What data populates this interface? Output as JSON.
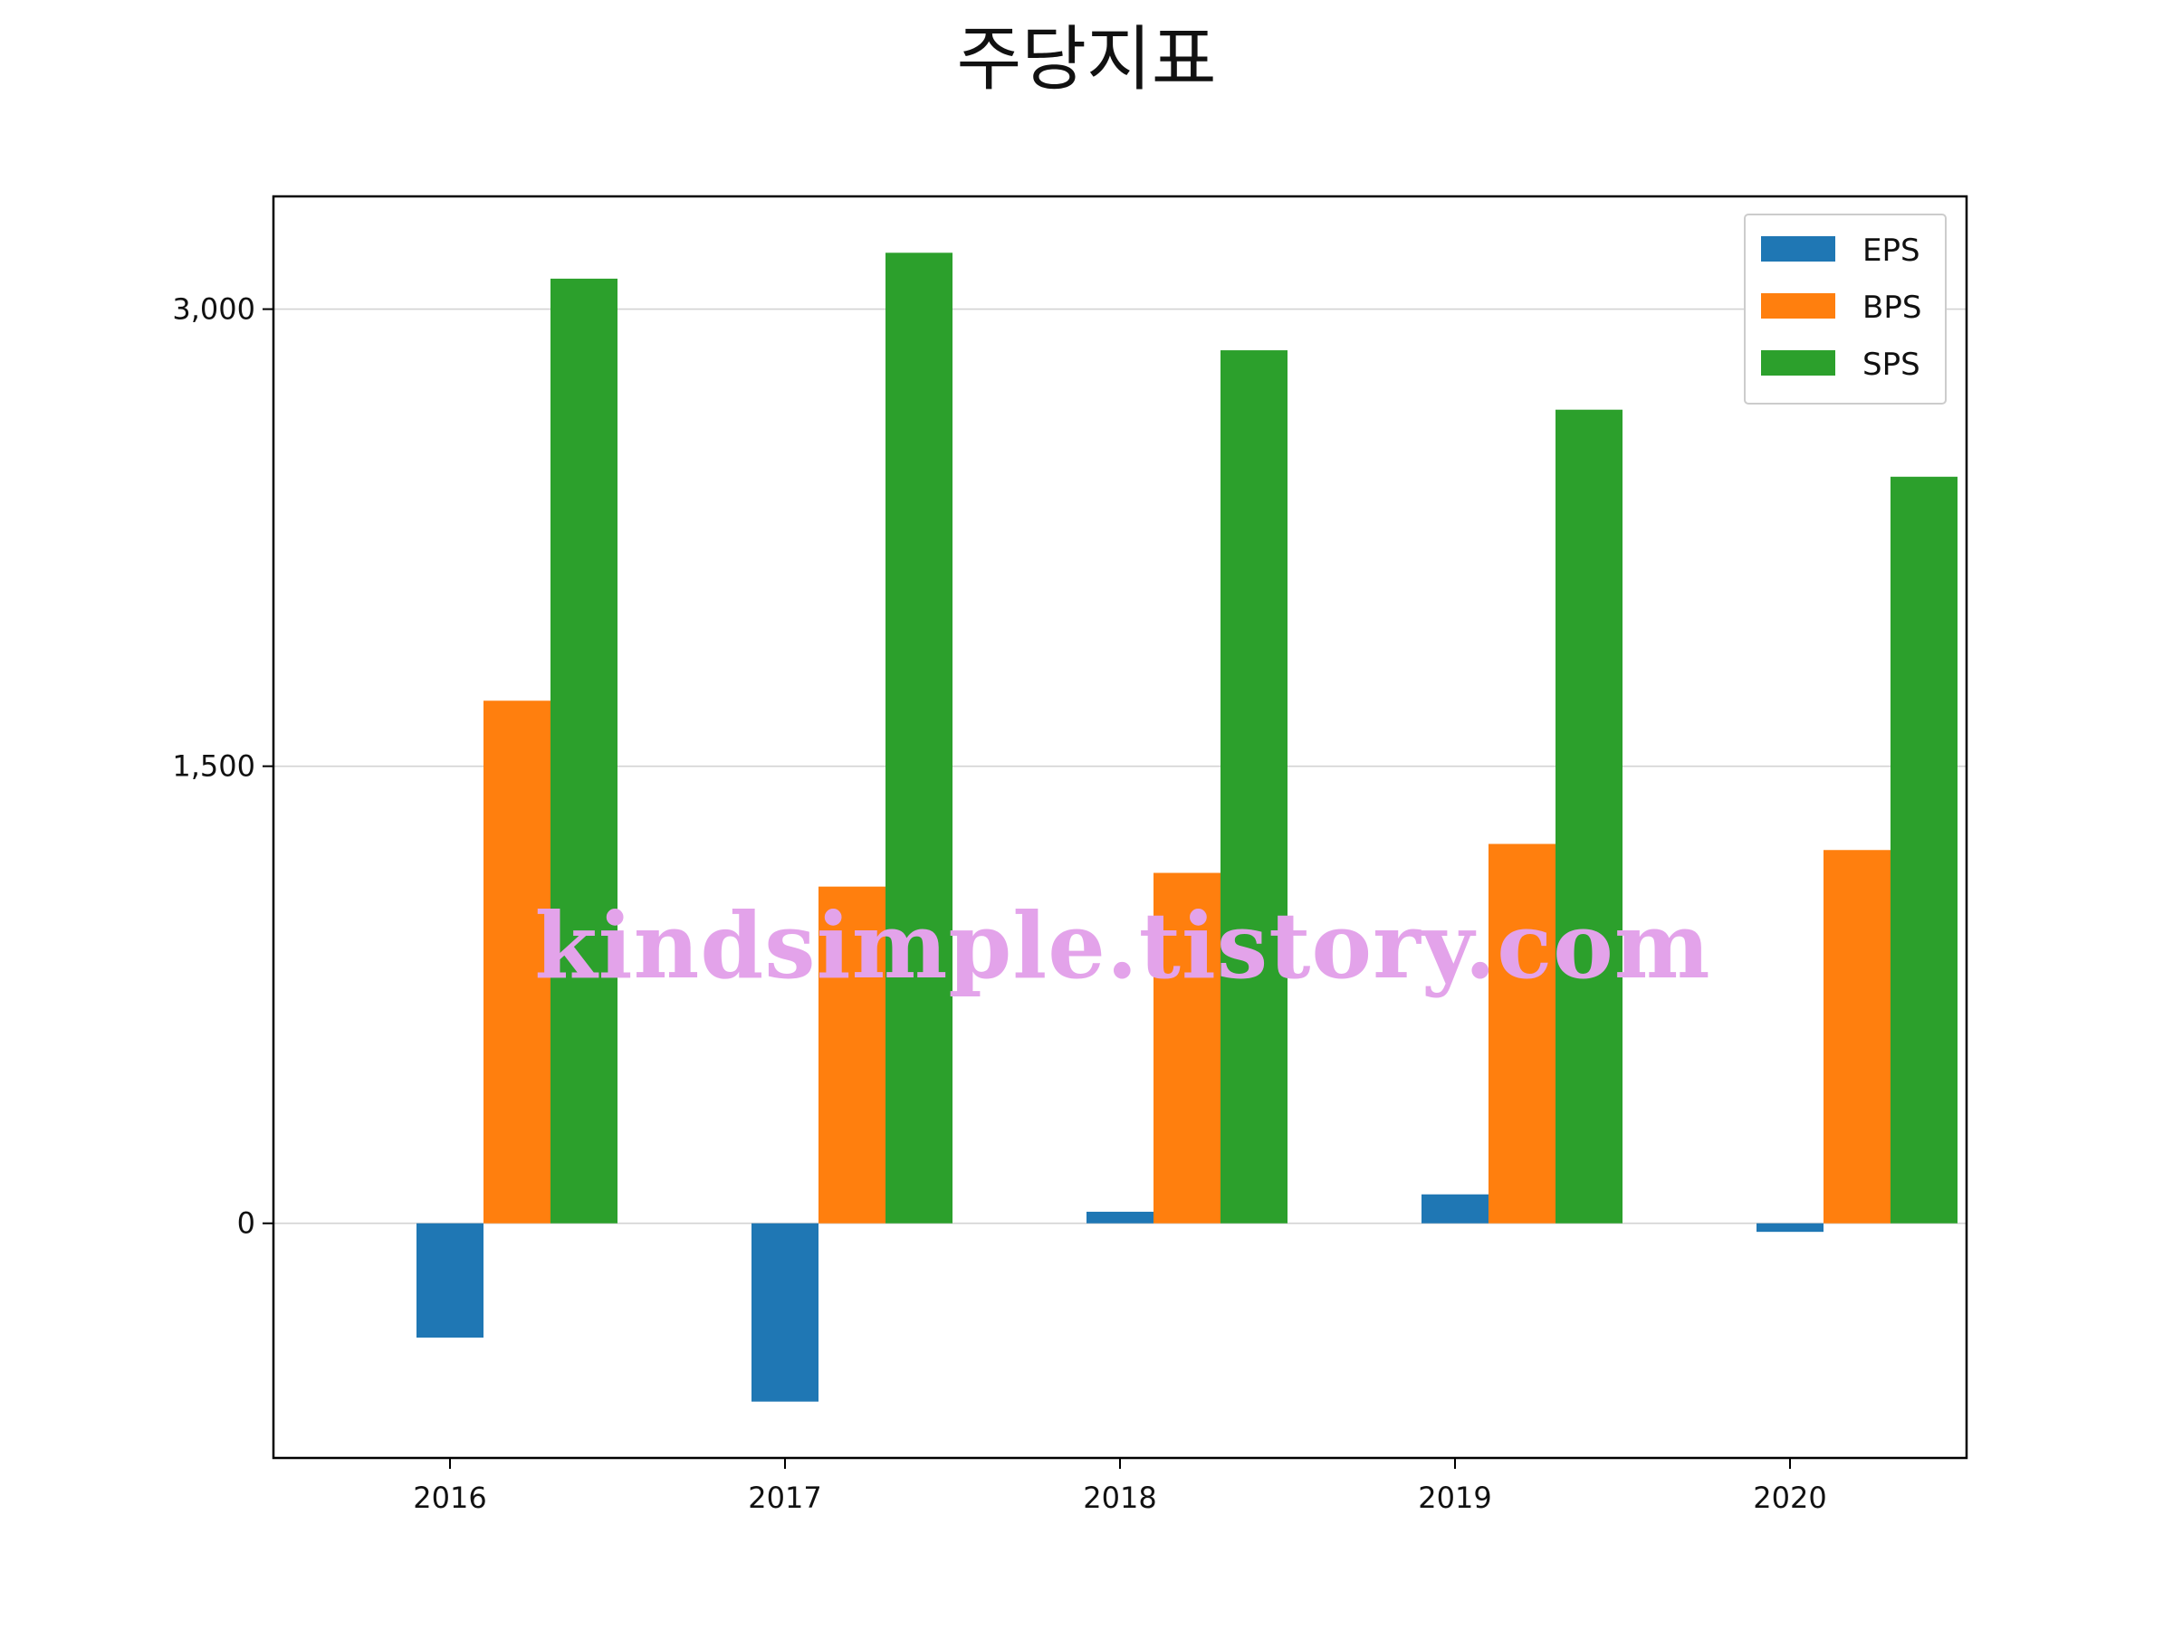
{
  "chart_data": {
    "type": "bar",
    "title": "주당지표",
    "xlabel": "",
    "ylabel": "",
    "categories": [
      "2016",
      "2017",
      "2018",
      "2019",
      "2020"
    ],
    "series": [
      {
        "name": "EPS",
        "color": "#1f77b4",
        "values": [
          -375,
          -585,
          38,
          95,
          -28
        ]
      },
      {
        "name": "BPS",
        "color": "#ff7f0e",
        "values": [
          1715,
          1105,
          1150,
          1245,
          1225
        ]
      },
      {
        "name": "SPS",
        "color": "#2ca02c",
        "values": [
          3100,
          3185,
          2865,
          2670,
          2450
        ]
      }
    ],
    "ylim": [
      -770,
      3370
    ],
    "yticks": [
      0,
      1500,
      3000
    ],
    "ytick_labels": [
      "0",
      "1,500",
      "3,000"
    ],
    "grid": "horizontal",
    "legend": "top-right",
    "watermark": "kindsimple.tistory.com"
  }
}
